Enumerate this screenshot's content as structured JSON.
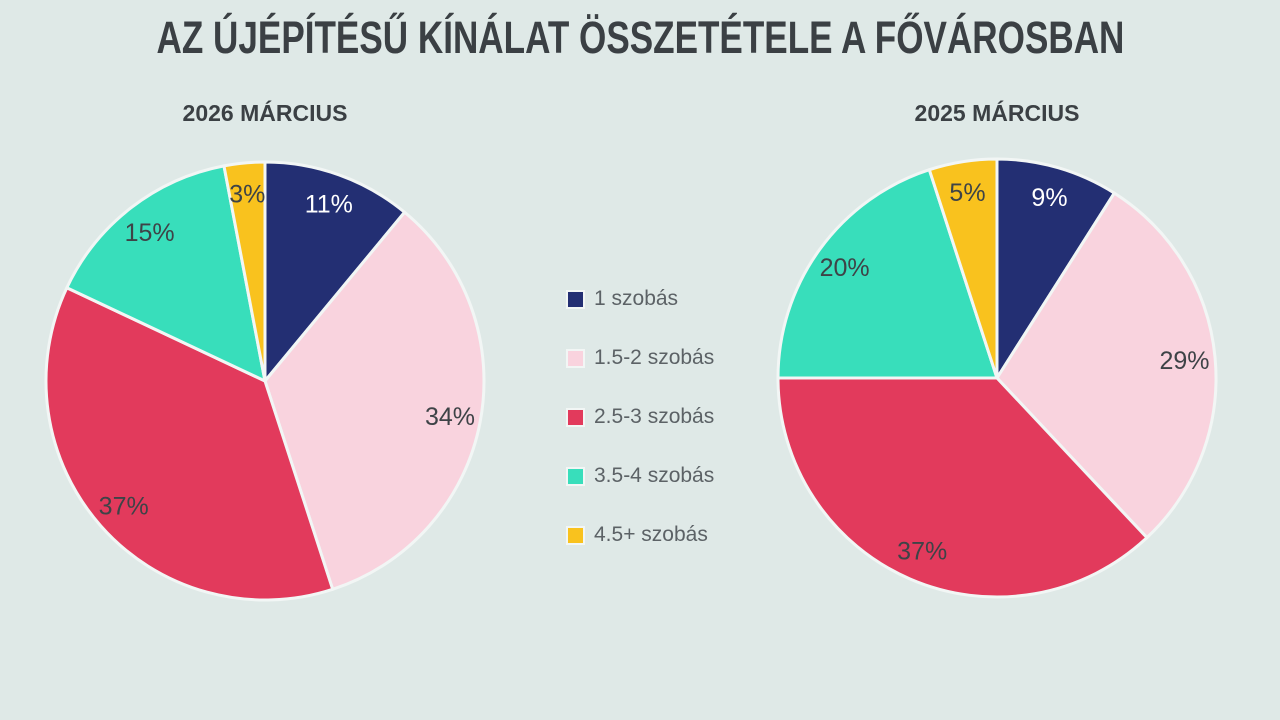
{
  "title": "AZ ÚJÉPÍTÉSŰ KÍNÁLAT ÖSSZETÉTELE A FŐVÁROSBAN",
  "colors": {
    "background": "#dfe9e7",
    "title_text": "#3b4044",
    "legend_text": "#5c6266",
    "slice_label_dark": "#3e4347",
    "slice_label_light": "#ffffff",
    "slice_separator": "#f2f6f5"
  },
  "legend": {
    "items": [
      {
        "label": "1 szobás",
        "color": "#232f73"
      },
      {
        "label": "1.5-2 szobás",
        "color": "#f9d3de"
      },
      {
        "label": "2.5-3 szobás",
        "color": "#e23a5c"
      },
      {
        "label": "3.5-4 szobás",
        "color": "#38debb"
      },
      {
        "label": "4.5+ szobás",
        "color": "#f9c21e"
      }
    ]
  },
  "chart_data": [
    {
      "type": "pie",
      "title": "2026 MÁRCIUS",
      "categories": [
        "1 szobás",
        "1.5-2 szobás",
        "2.5-3 szobás",
        "3.5-4 szobás",
        "4.5+ szobás"
      ],
      "values": [
        11,
        34,
        37,
        15,
        3
      ],
      "data_labels": [
        "11%",
        "34%",
        "37%",
        "15%",
        "3%"
      ],
      "unit": "%",
      "start_angle_deg": 0,
      "direction": "clockwise",
      "slice_colors": [
        "#232f73",
        "#f9d3de",
        "#e23a5c",
        "#38debb",
        "#f9c21e"
      ],
      "label_colors": [
        "#ffffff",
        "#3e4347",
        "#3e4347",
        "#3e4347",
        "#3e4347"
      ],
      "legend_position": "right-of-chart"
    },
    {
      "type": "pie",
      "title": "2025 MÁRCIUS",
      "categories": [
        "1 szobás",
        "1.5-2 szobás",
        "2.5-3 szobás",
        "3.5-4 szobás",
        "4.5+ szobás"
      ],
      "values": [
        9,
        29,
        37,
        20,
        5
      ],
      "data_labels": [
        "9%",
        "29%",
        "37%",
        "20%",
        "5%"
      ],
      "unit": "%",
      "start_angle_deg": 0,
      "direction": "clockwise",
      "slice_colors": [
        "#232f73",
        "#f9d3de",
        "#e23a5c",
        "#38debb",
        "#f9c21e"
      ],
      "label_colors": [
        "#ffffff",
        "#3e4347",
        "#3e4347",
        "#3e4347",
        "#3e4347"
      ],
      "legend_position": "left-of-chart"
    }
  ]
}
